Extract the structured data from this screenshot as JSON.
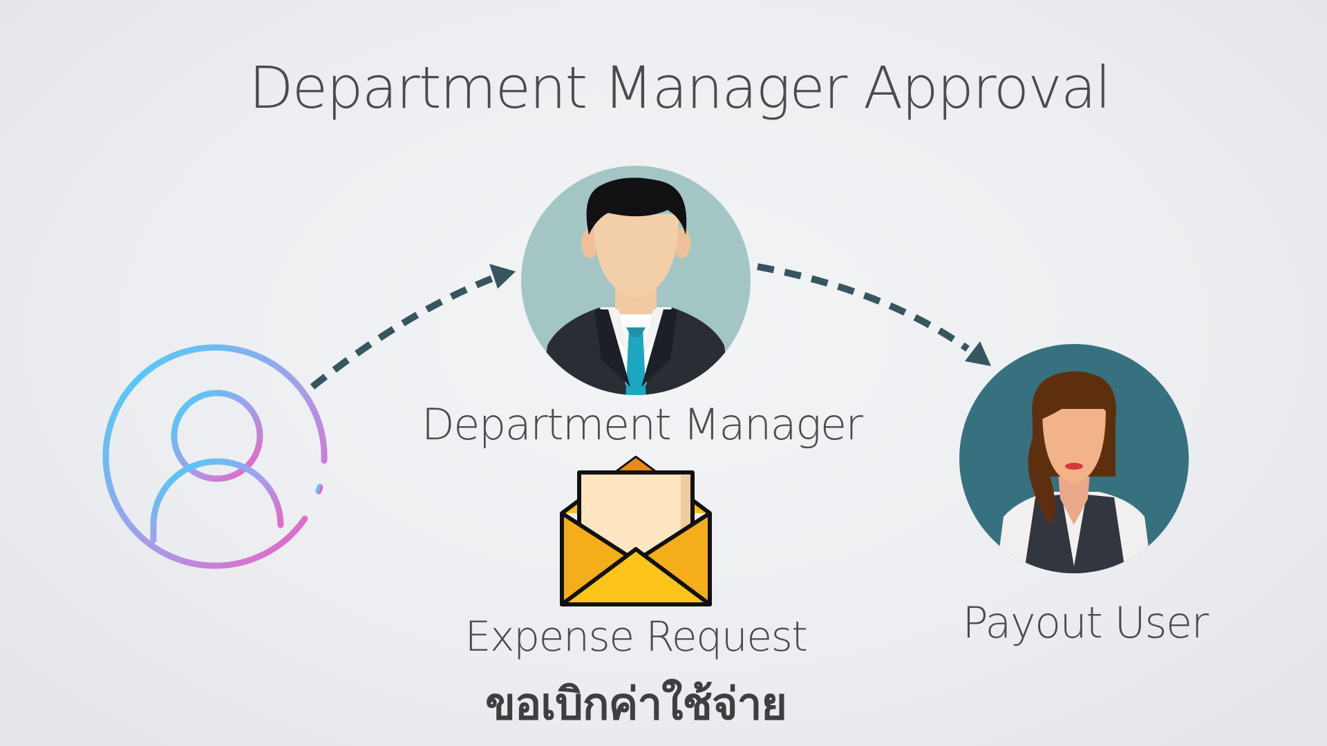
{
  "title": "Department Manager Approval",
  "nodes": {
    "requester": {
      "icon": "user-outline-icon"
    },
    "manager": {
      "label": "Department Manager",
      "icon": "businessman-avatar-icon"
    },
    "payout": {
      "label": "Payout User",
      "icon": "businesswoman-avatar-icon"
    }
  },
  "document": {
    "icon": "envelope-letter-icon",
    "label_en": "Expense Request",
    "label_th": "ขอเบิกค่าใช้จ่าย"
  },
  "edges": [
    {
      "from": "requester",
      "to": "manager",
      "style": "dashed-arrow"
    },
    {
      "from": "manager",
      "to": "payout",
      "style": "dashed-arrow"
    }
  ],
  "colors": {
    "arrow": "#37555e",
    "manager_bg": "#a3c6c5",
    "payout_bg": "#37717f",
    "text": "#4a4b4d",
    "envelope": "#f5b31a"
  }
}
